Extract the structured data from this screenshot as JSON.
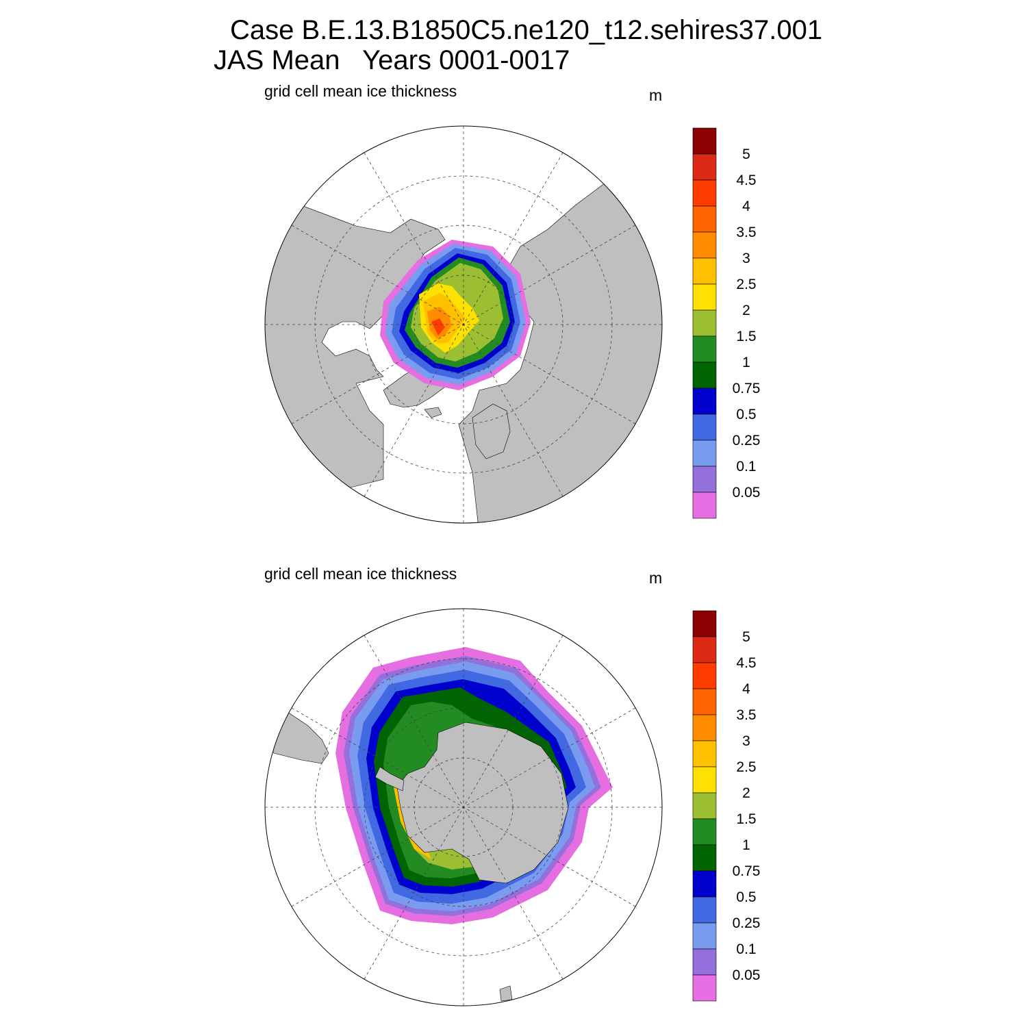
{
  "title": {
    "line1": "Case B.E.13.B1850C5.ne120_t12.sehires37.001",
    "line2": "JAS Mean   Years 0001-0017"
  },
  "colorbar": {
    "labels": [
      "5",
      "4.5",
      "4",
      "3.5",
      "3",
      "2.5",
      "2",
      "1.5",
      "1",
      "0.75",
      "0.5",
      "0.25",
      "0.1",
      "0.05"
    ],
    "colors_top_to_bottom": [
      "#8b0000",
      "#dc2a14",
      "#ff3c00",
      "#ff6400",
      "#ff8c00",
      "#ffc000",
      "#ffe000",
      "#9cbe32",
      "#228b22",
      "#006400",
      "#0000cd",
      "#4169e1",
      "#7a9cf0",
      "#9370db",
      "#e56ee0"
    ]
  },
  "colors": {
    "land": "#bfbfbf",
    "ocean": "#ffffff"
  },
  "panels": [
    {
      "id": "north",
      "label": "grid cell mean ice thickness",
      "units": "m",
      "hemisphere": "north"
    },
    {
      "id": "south",
      "label": "grid cell mean ice thickness",
      "units": "m",
      "hemisphere": "south"
    }
  ]
}
